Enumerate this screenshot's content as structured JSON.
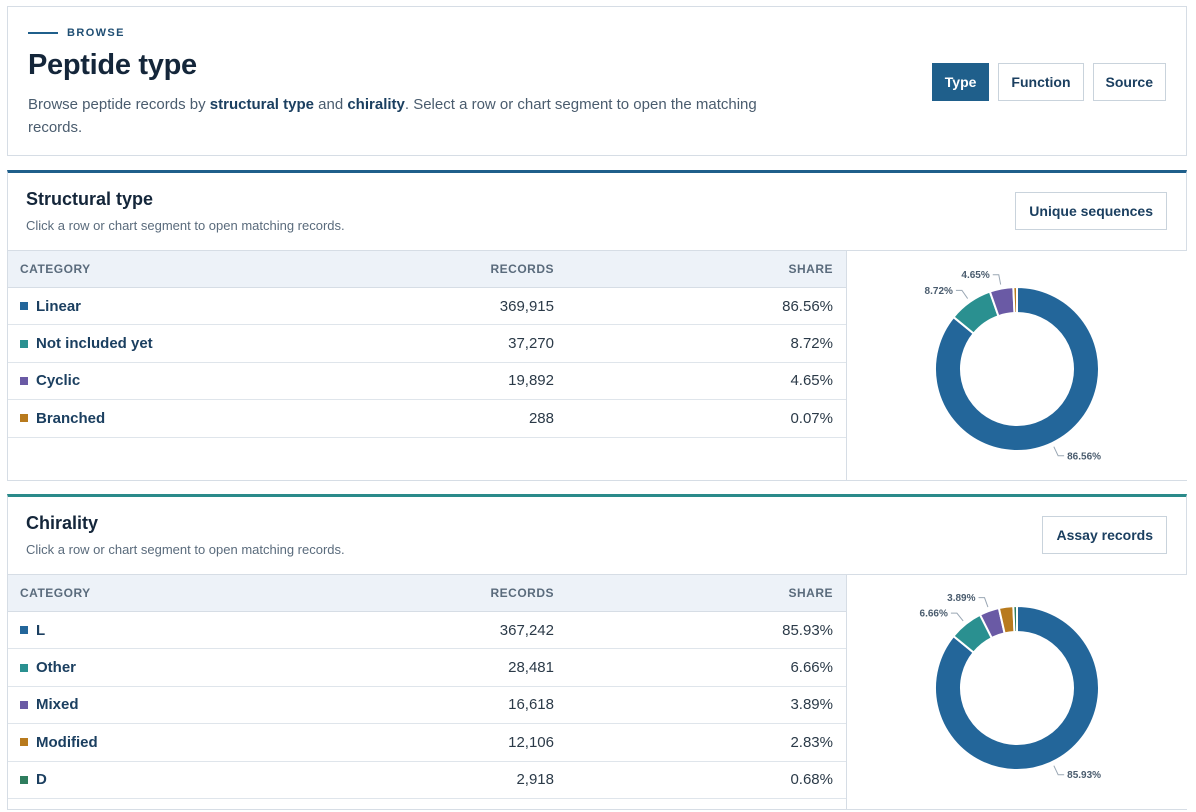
{
  "header": {
    "eyebrow": "BROWSE",
    "title": "Peptide type",
    "desc_prefix": "Browse peptide records by ",
    "desc_strong1": "structural type",
    "desc_mid": " and ",
    "desc_strong2": "chirality",
    "desc_suffix": ". Select a row or chart segment to open the matching records.",
    "tabs": [
      {
        "label": "Type",
        "active": true
      },
      {
        "label": "Function",
        "active": false
      },
      {
        "label": "Source",
        "active": false
      }
    ]
  },
  "columns": {
    "category": "CATEGORY",
    "records": "RECORDS",
    "share": "SHARE"
  },
  "structural": {
    "title": "Structural type",
    "subtitle": "Click a row or chart segment to open matching records.",
    "button": "Unique sequences",
    "rows": [
      {
        "label": "Linear",
        "records": "369,915",
        "share": "86.56%",
        "color": "#23669a"
      },
      {
        "label": "Not included yet",
        "records": "37,270",
        "share": "8.72%",
        "color": "#2a9090"
      },
      {
        "label": "Cyclic",
        "records": "19,892",
        "share": "4.65%",
        "color": "#6a5aa5"
      },
      {
        "label": "Branched",
        "records": "288",
        "share": "0.07%",
        "color": "#b87a1d"
      }
    ]
  },
  "chirality": {
    "title": "Chirality",
    "subtitle": "Click a row or chart segment to open matching records.",
    "button": "Assay records",
    "rows": [
      {
        "label": "L",
        "records": "367,242",
        "share": "85.93%",
        "color": "#23669a"
      },
      {
        "label": "Other",
        "records": "28,481",
        "share": "6.66%",
        "color": "#2a9090"
      },
      {
        "label": "Mixed",
        "records": "16,618",
        "share": "3.89%",
        "color": "#6a5aa5"
      },
      {
        "label": "Modified",
        "records": "12,106",
        "share": "2.83%",
        "color": "#b87a1d"
      },
      {
        "label": "D",
        "records": "2,918",
        "share": "0.68%",
        "color": "#2e7d5e"
      }
    ]
  },
  "chart_data": [
    {
      "type": "pie",
      "categories": [
        "Linear",
        "Not included yet",
        "Cyclic",
        "Branched"
      ],
      "values": [
        86.56,
        8.72,
        4.65,
        0.07
      ],
      "labels_shown": [
        "86.56%",
        "8.72%",
        "4.65%"
      ]
    },
    {
      "type": "pie",
      "categories": [
        "L",
        "Other",
        "Mixed",
        "Modified",
        "D"
      ],
      "values": [
        85.93,
        6.66,
        3.89,
        2.83,
        0.68
      ],
      "labels_shown": [
        "85.93%",
        "6.66%",
        "3.89%"
      ]
    }
  ]
}
